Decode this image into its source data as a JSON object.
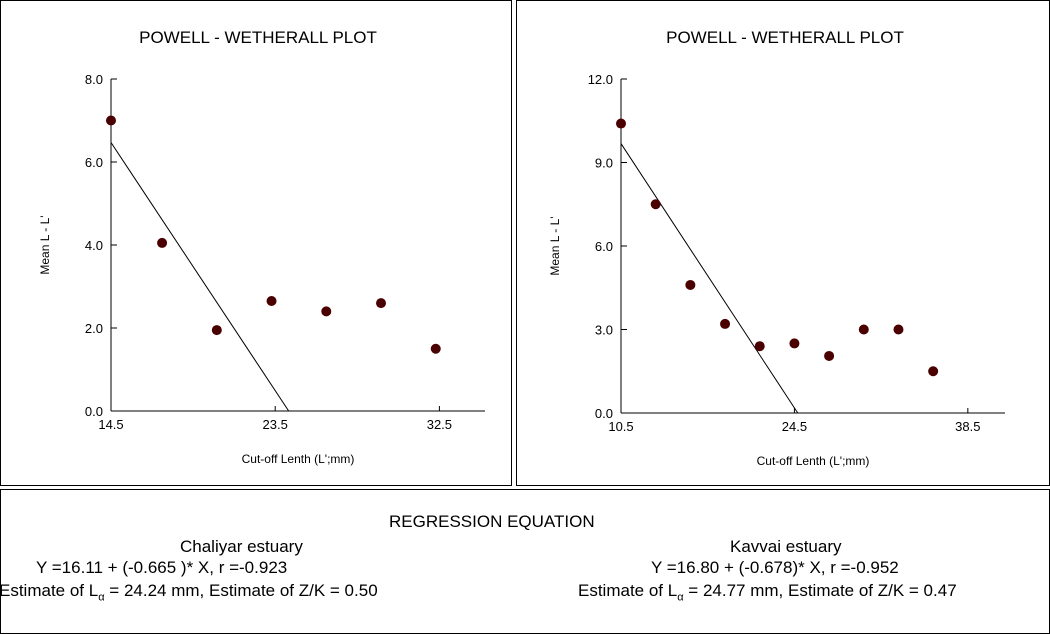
{
  "chart_data": [
    {
      "type": "scatter",
      "title": "POWELL - WETHERALL PLOT",
      "xlabel": "Cut-off Lenth (L';mm)",
      "ylabel": "Mean L - L'",
      "xlim": [
        14.5,
        35.0
      ],
      "ylim": [
        0.0,
        8.0
      ],
      "xticks": [
        "14.5",
        "23.5",
        "32.5"
      ],
      "yticks": [
        "0.0",
        "2.0",
        "4.0",
        "6.0",
        "8.0"
      ],
      "points": [
        {
          "x": 14.5,
          "y": 7.0
        },
        {
          "x": 17.3,
          "y": 4.05
        },
        {
          "x": 20.3,
          "y": 1.95
        },
        {
          "x": 23.3,
          "y": 2.65
        },
        {
          "x": 26.3,
          "y": 2.4
        },
        {
          "x": 29.3,
          "y": 2.6
        },
        {
          "x": 32.3,
          "y": 1.5
        }
      ],
      "regression_line": {
        "x": [
          14.5,
          24.24
        ],
        "y": [
          6.47,
          0.0
        ]
      }
    },
    {
      "type": "scatter",
      "title": "POWELL - WETHERALL PLOT",
      "xlabel": "Cut-off Lenth (L';mm)",
      "ylabel": "Mean L - L'",
      "xlim": [
        10.5,
        41.5
      ],
      "ylim": [
        0.0,
        12.0
      ],
      "xticks": [
        "10.5",
        "24.5",
        "38.5"
      ],
      "yticks": [
        "0.0",
        "3.0",
        "6.0",
        "9.0",
        "12.0"
      ],
      "points": [
        {
          "x": 10.5,
          "y": 10.4
        },
        {
          "x": 13.3,
          "y": 7.5
        },
        {
          "x": 16.1,
          "y": 4.6
        },
        {
          "x": 18.9,
          "y": 3.2
        },
        {
          "x": 21.7,
          "y": 2.4
        },
        {
          "x": 24.5,
          "y": 2.5
        },
        {
          "x": 27.3,
          "y": 2.05
        },
        {
          "x": 30.1,
          "y": 3.0
        },
        {
          "x": 32.9,
          "y": 3.0
        },
        {
          "x": 35.7,
          "y": 1.5
        }
      ],
      "regression_line": {
        "x": [
          10.5,
          24.77
        ],
        "y": [
          9.68,
          0.0
        ]
      }
    }
  ],
  "point_color": "#4a0000",
  "regression": {
    "heading": "REGRESSION EQUATION",
    "left": {
      "site": "Chaliyar estuary",
      "equation": "Y =16.11 + (-0.665 )* X, r =-0.923",
      "estimate_prefix": "Estimate of L",
      "estimate_sub": "α",
      "estimate_rest": " = 24.24 mm, Estimate of Z/K = 0.50"
    },
    "right": {
      "site": "Kavvai estuary",
      "equation": "Y =16.80 + (-0.678)* X, r =-0.952",
      "estimate_prefix": "Estimate of L",
      "estimate_sub": "α",
      "estimate_rest": " = 24.77 mm, Estimate of Z/K = 0.47"
    }
  }
}
